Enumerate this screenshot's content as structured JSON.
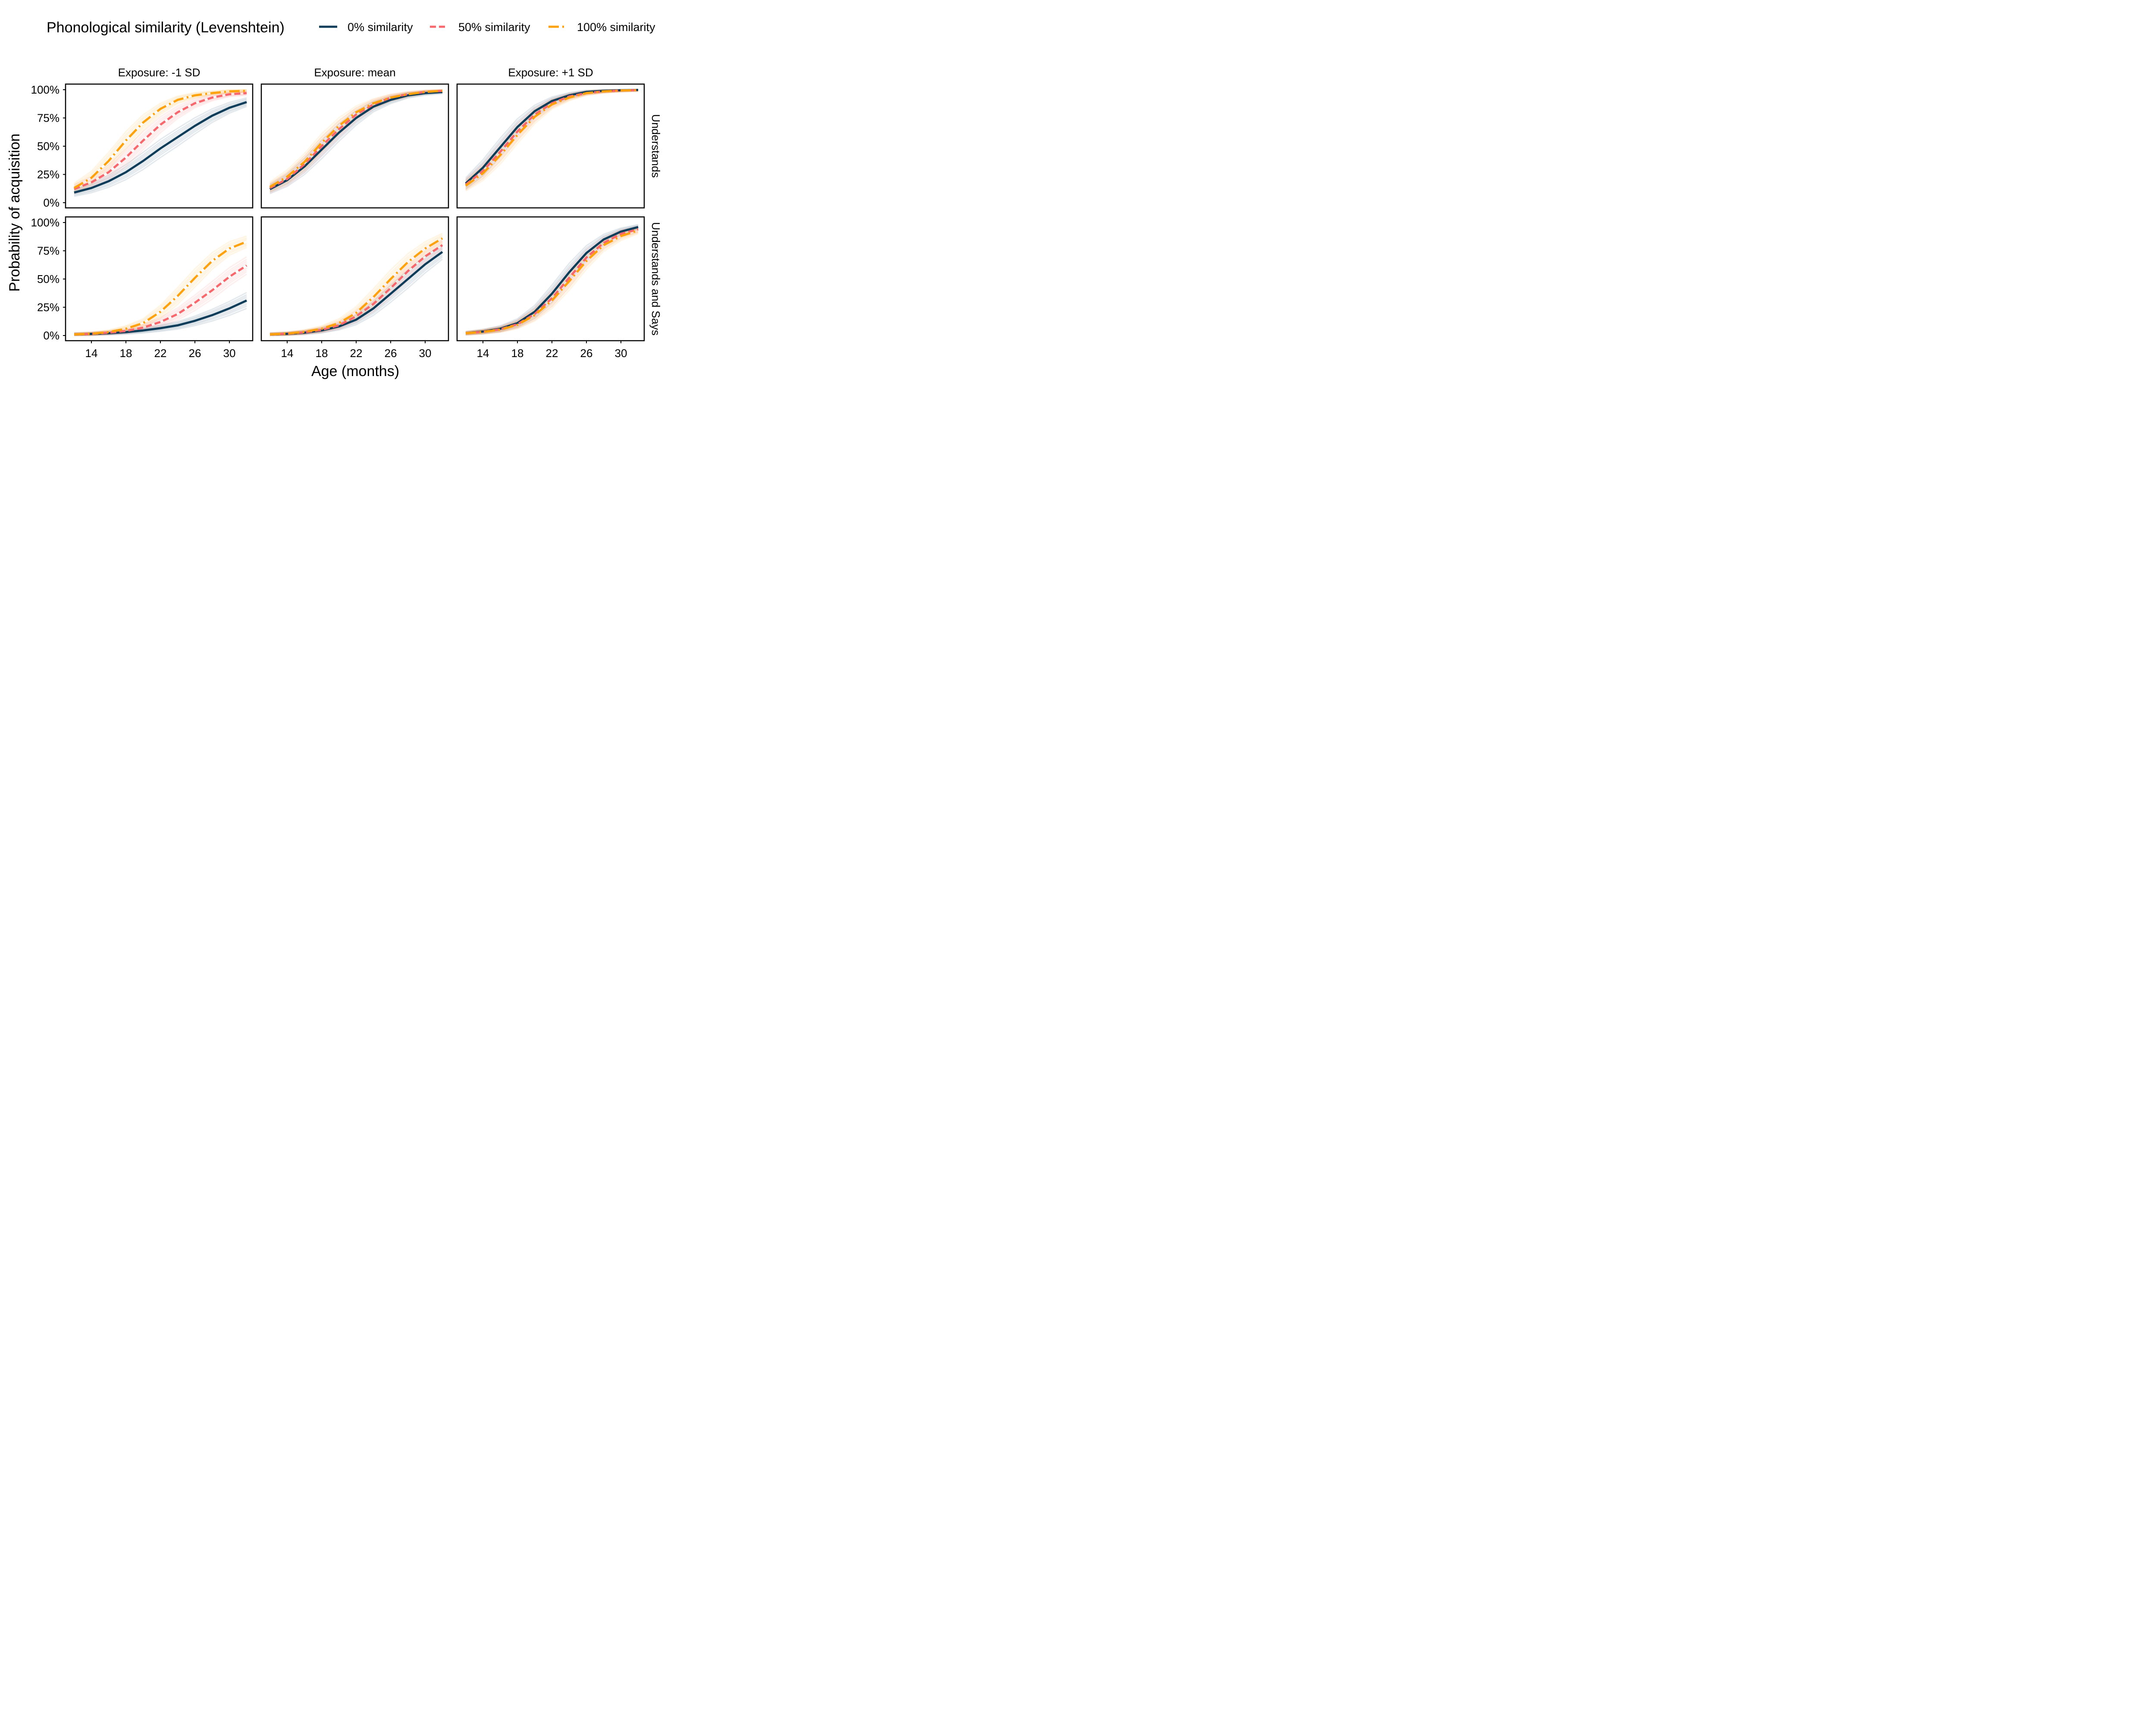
{
  "chart_data": {
    "type": "line",
    "legend": {
      "title": "Phonological similarity (Levenshtein)",
      "placement": "top",
      "entries": [
        {
          "label": "0% similarity",
          "color": "#0b3d5a",
          "dash": "solid"
        },
        {
          "label": "50% similarity",
          "color": "#f8676b",
          "dash": "dashed"
        },
        {
          "label": "100% similarity",
          "color": "#ffa10a",
          "dash": "dotdash"
        }
      ]
    },
    "xlabel": "Age (months)",
    "ylabel": "Probability of acquisition",
    "xlim": [
      12,
      32
    ],
    "ylim": [
      0,
      1
    ],
    "x_ticks": [
      14,
      18,
      22,
      26,
      30
    ],
    "y_ticks": [
      {
        "value": 0,
        "label": "0%"
      },
      {
        "value": 0.25,
        "label": "25%"
      },
      {
        "value": 0.5,
        "label": "50%"
      },
      {
        "value": 0.75,
        "label": "75%"
      },
      {
        "value": 1,
        "label": "100%"
      }
    ],
    "grid": false,
    "col_strips": [
      "Exposure: -1 SD",
      "Exposure: mean",
      "Exposure: +1 SD"
    ],
    "row_strips": [
      "Understands",
      "Understands and Says"
    ],
    "x": [
      12,
      14,
      16,
      18,
      20,
      22,
      24,
      26,
      28,
      30,
      32
    ],
    "panels": [
      {
        "row": 0,
        "col": 0,
        "series": [
          {
            "name": "0% similarity",
            "values": [
              0.09,
              0.13,
              0.19,
              0.27,
              0.37,
              0.48,
              0.58,
              0.68,
              0.77,
              0.84,
              0.89
            ]
          },
          {
            "name": "50% similarity",
            "values": [
              0.12,
              0.18,
              0.27,
              0.4,
              0.55,
              0.69,
              0.8,
              0.88,
              0.93,
              0.96,
              0.97
            ]
          },
          {
            "name": "100% similarity",
            "values": [
              0.13,
              0.22,
              0.37,
              0.55,
              0.71,
              0.83,
              0.91,
              0.95,
              0.97,
              0.985,
              0.99
            ]
          }
        ]
      },
      {
        "row": 0,
        "col": 1,
        "series": [
          {
            "name": "0% similarity",
            "values": [
              0.12,
              0.2,
              0.32,
              0.47,
              0.62,
              0.75,
              0.85,
              0.91,
              0.95,
              0.97,
              0.98
            ]
          },
          {
            "name": "50% similarity",
            "values": [
              0.13,
              0.21,
              0.34,
              0.5,
              0.65,
              0.78,
              0.87,
              0.93,
              0.96,
              0.98,
              0.99
            ]
          },
          {
            "name": "100% similarity",
            "values": [
              0.14,
              0.23,
              0.36,
              0.53,
              0.68,
              0.8,
              0.88,
              0.93,
              0.96,
              0.98,
              0.99
            ]
          }
        ]
      },
      {
        "row": 0,
        "col": 2,
        "series": [
          {
            "name": "0% similarity",
            "values": [
              0.17,
              0.31,
              0.49,
              0.67,
              0.81,
              0.9,
              0.95,
              0.98,
              0.99,
              0.995,
              0.998
            ]
          },
          {
            "name": "50% similarity",
            "values": [
              0.16,
              0.28,
              0.45,
              0.63,
              0.78,
              0.88,
              0.94,
              0.97,
              0.985,
              0.993,
              0.997
            ]
          },
          {
            "name": "100% similarity",
            "values": [
              0.15,
              0.26,
              0.42,
              0.6,
              0.76,
              0.87,
              0.93,
              0.97,
              0.985,
              0.993,
              0.997
            ]
          }
        ]
      },
      {
        "row": 1,
        "col": 0,
        "series": [
          {
            "name": "0% similarity",
            "values": [
              0.01,
              0.014,
              0.02,
              0.03,
              0.045,
              0.065,
              0.09,
              0.13,
              0.18,
              0.24,
              0.31
            ]
          },
          {
            "name": "50% similarity",
            "values": [
              0.01,
              0.015,
              0.025,
              0.04,
              0.07,
              0.12,
              0.19,
              0.29,
              0.4,
              0.52,
              0.62
            ]
          },
          {
            "name": "100% similarity",
            "values": [
              0.01,
              0.016,
              0.03,
              0.06,
              0.11,
              0.21,
              0.35,
              0.51,
              0.66,
              0.77,
              0.83
            ]
          }
        ]
      },
      {
        "row": 1,
        "col": 1,
        "series": [
          {
            "name": "0% similarity",
            "values": [
              0.01,
              0.015,
              0.025,
              0.045,
              0.08,
              0.14,
              0.24,
              0.37,
              0.5,
              0.63,
              0.74
            ]
          },
          {
            "name": "50% similarity",
            "values": [
              0.01,
              0.016,
              0.028,
              0.05,
              0.09,
              0.17,
              0.28,
              0.42,
              0.57,
              0.7,
              0.8
            ]
          },
          {
            "name": "100% similarity",
            "values": [
              0.01,
              0.017,
              0.032,
              0.06,
              0.11,
              0.2,
              0.34,
              0.5,
              0.65,
              0.77,
              0.86
            ]
          }
        ]
      },
      {
        "row": 1,
        "col": 2,
        "series": [
          {
            "name": "0% similarity",
            "values": [
              0.02,
              0.035,
              0.06,
              0.11,
              0.21,
              0.37,
              0.56,
              0.73,
              0.85,
              0.92,
              0.96
            ]
          },
          {
            "name": "50% similarity",
            "values": [
              0.02,
              0.033,
              0.055,
              0.1,
              0.19,
              0.33,
              0.51,
              0.69,
              0.82,
              0.9,
              0.94
            ]
          },
          {
            "name": "100% similarity",
            "values": [
              0.02,
              0.032,
              0.052,
              0.095,
              0.18,
              0.31,
              0.48,
              0.66,
              0.8,
              0.88,
              0.93
            ]
          }
        ]
      }
    ]
  }
}
